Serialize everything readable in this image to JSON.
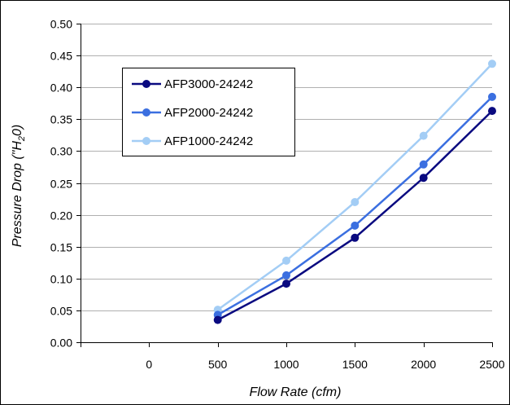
{
  "chart_data": {
    "type": "line",
    "xlabel": "Flow Rate (cfm)",
    "ylabel_parts": [
      "Pressure Drop (\"H",
      "2",
      "0)"
    ],
    "ylim": [
      0,
      0.5
    ],
    "yticks": [
      "0.00",
      "0.05",
      "0.10",
      "0.15",
      "0.20",
      "0.25",
      "0.30",
      "0.35",
      "0.40",
      "0.45",
      "0.50"
    ],
    "xlim": [
      -500,
      2500
    ],
    "xticks": [
      "0",
      "500",
      "1000",
      "1500",
      "2000",
      "2500"
    ],
    "x": [
      500,
      1000,
      1500,
      2000,
      2500
    ],
    "grid": true,
    "legend_position": "top-left",
    "series": [
      {
        "name": "AFP3000-24242",
        "color": "#0a0a80",
        "values": [
          0.035,
          0.092,
          0.164,
          0.258,
          0.363
        ]
      },
      {
        "name": "AFP2000-24242",
        "color": "#3b6fe0",
        "values": [
          0.043,
          0.105,
          0.183,
          0.279,
          0.385
        ]
      },
      {
        "name": "AFP1000-24242",
        "color": "#a3cdf5",
        "values": [
          0.051,
          0.128,
          0.22,
          0.324,
          0.437
        ]
      }
    ]
  }
}
